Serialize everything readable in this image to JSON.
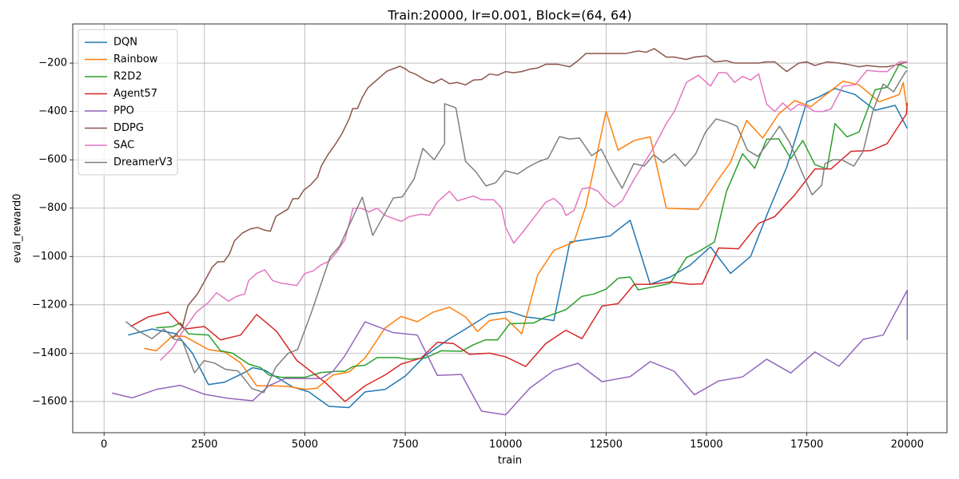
{
  "chart_data": {
    "type": "line",
    "title": "Train:20000, lr=0.001, Block=(64, 64)",
    "x_label": "train",
    "y_label": "eval_reward0",
    "xlim": [
      -780,
      20990
    ],
    "ylim": [
      -1729,
      -38
    ],
    "xticks": [
      0,
      2500,
      5000,
      7500,
      10000,
      12500,
      15000,
      17500,
      20000
    ],
    "yticks": [
      {
        "value": -1600,
        "label": "−1600"
      },
      {
        "value": -1400,
        "label": "−1400"
      },
      {
        "value": -1200,
        "label": "−1200"
      },
      {
        "value": -1000,
        "label": "−1000"
      },
      {
        "value": -800,
        "label": "−800"
      },
      {
        "value": -600,
        "label": "−600"
      },
      {
        "value": -400,
        "label": "−400"
      },
      {
        "value": -200,
        "label": "−200"
      }
    ],
    "grid": true,
    "legend": "upper left",
    "series": [
      {
        "name": "DQN",
        "color": "#1f77b4",
        "x": [
          600,
          1200,
          1800,
          2200,
          2600,
          3000,
          3500,
          3700,
          4000,
          4300,
          4700,
          5100,
          5600,
          6100,
          6500,
          7000,
          7500,
          8000,
          8600,
          9000,
          9600,
          10100,
          10500,
          11000,
          11200,
          11600,
          12000,
          12600,
          13100,
          13600,
          14100,
          14600,
          15100,
          15600,
          16100,
          16500,
          17000,
          17500,
          17800,
          18200,
          18700,
          19200,
          19700,
          20000
        ],
        "values": [
          -1325,
          -1300,
          -1320,
          -1400,
          -1530,
          -1520,
          -1480,
          -1460,
          -1470,
          -1500,
          -1540,
          -1560,
          -1620,
          -1625,
          -1560,
          -1550,
          -1495,
          -1410,
          -1340,
          -1300,
          -1238,
          -1228,
          -1250,
          -1260,
          -1265,
          -940,
          -930,
          -915,
          -850,
          -1115,
          -1085,
          -1035,
          -960,
          -1070,
          -1000,
          -830,
          -630,
          -360,
          -340,
          -305,
          -330,
          -395,
          -375,
          -470
        ]
      },
      {
        "name": "Rainbow",
        "color": "#ff7f0e",
        "x": [
          1000,
          1300,
          1700,
          2000,
          2600,
          3000,
          3400,
          3800,
          4200,
          4600,
          5000,
          5300,
          5700,
          6100,
          6500,
          7000,
          7400,
          7800,
          8200,
          8600,
          9000,
          9300,
          9600,
          10000,
          10400,
          10800,
          11200,
          11700,
          12000,
          12500,
          12800,
          13200,
          13600,
          14000,
          14800,
          15300,
          15600,
          16000,
          16400,
          16800,
          17200,
          17600,
          17900,
          18400,
          18800,
          19300,
          19800,
          19900,
          19980,
          20000
        ],
        "values": [
          -1380,
          -1390,
          -1330,
          -1330,
          -1385,
          -1395,
          -1440,
          -1535,
          -1535,
          -1538,
          -1550,
          -1545,
          -1490,
          -1478,
          -1420,
          -1295,
          -1248,
          -1270,
          -1230,
          -1210,
          -1250,
          -1310,
          -1265,
          -1255,
          -1320,
          -1075,
          -975,
          -940,
          -790,
          -400,
          -560,
          -520,
          -505,
          -800,
          -805,
          -680,
          -610,
          -437,
          -510,
          -410,
          -355,
          -380,
          -340,
          -275,
          -290,
          -360,
          -330,
          -280,
          -375,
          -395
        ]
      },
      {
        "name": "R2D2",
        "color": "#2ca02c",
        "x": [
          1300,
          1700,
          1900,
          2100,
          2600,
          2900,
          3200,
          3600,
          3900,
          4100,
          4400,
          5000,
          5400,
          5800,
          6000,
          6200,
          6500,
          6800,
          7300,
          7600,
          8000,
          8400,
          8900,
          9200,
          9500,
          9800,
          10100,
          10700,
          11000,
          11500,
          11900,
          12200,
          12500,
          12800,
          13100,
          13300,
          14000,
          14100,
          14500,
          14800,
          15200,
          15500,
          15900,
          16200,
          16500,
          16800,
          17100,
          17400,
          17700,
          18000,
          18200,
          18500,
          18800,
          19200,
          19500,
          19800,
          20000
        ],
        "values": [
          -1295,
          -1290,
          -1275,
          -1320,
          -1325,
          -1390,
          -1400,
          -1445,
          -1460,
          -1490,
          -1500,
          -1500,
          -1480,
          -1475,
          -1475,
          -1455,
          -1450,
          -1418,
          -1418,
          -1425,
          -1420,
          -1390,
          -1392,
          -1365,
          -1345,
          -1345,
          -1278,
          -1275,
          -1250,
          -1220,
          -1165,
          -1155,
          -1135,
          -1090,
          -1085,
          -1138,
          -1115,
          -1110,
          -1005,
          -980,
          -940,
          -730,
          -575,
          -635,
          -515,
          -513,
          -595,
          -520,
          -620,
          -638,
          -450,
          -505,
          -485,
          -310,
          -300,
          -205,
          -220
        ]
      },
      {
        "name": "Agent57",
        "color": "#d62728",
        "x": [
          660,
          1100,
          1600,
          2000,
          2500,
          2900,
          3400,
          3800,
          4300,
          4800,
          5500,
          6000,
          6500,
          7000,
          7400,
          7900,
          8300,
          8700,
          9100,
          9600,
          10000,
          10500,
          11000,
          11500,
          11900,
          12400,
          12800,
          13200,
          13600,
          14100,
          14600,
          14900,
          15300,
          15800,
          16300,
          16700,
          17200,
          17700,
          18100,
          18600,
          19100,
          19500,
          19980,
          20000
        ],
        "values": [
          -1290,
          -1250,
          -1230,
          -1300,
          -1290,
          -1345,
          -1325,
          -1240,
          -1310,
          -1430,
          -1520,
          -1600,
          -1535,
          -1490,
          -1445,
          -1420,
          -1355,
          -1360,
          -1405,
          -1400,
          -1415,
          -1455,
          -1360,
          -1305,
          -1340,
          -1205,
          -1195,
          -1115,
          -1115,
          -1105,
          -1115,
          -1113,
          -965,
          -968,
          -863,
          -835,
          -745,
          -638,
          -638,
          -565,
          -562,
          -533,
          -410,
          -365
        ]
      },
      {
        "name": "PPO",
        "color": "#9467bd",
        "x": [
          200,
          700,
          1300,
          1900,
          2500,
          3100,
          3700,
          4100,
          4500,
          4900,
          5400,
          5700,
          6000,
          6500,
          7200,
          7800,
          8300,
          8900,
          9400,
          10000,
          10600,
          11200,
          11800,
          12400,
          13100,
          13600,
          14200,
          14700,
          15300,
          15900,
          16500,
          17100,
          17700,
          18300,
          18900,
          19400,
          20000,
          20000
        ],
        "values": [
          -1565,
          -1585,
          -1550,
          -1533,
          -1570,
          -1587,
          -1597,
          -1535,
          -1505,
          -1505,
          -1505,
          -1475,
          -1410,
          -1270,
          -1315,
          -1325,
          -1492,
          -1488,
          -1640,
          -1655,
          -1545,
          -1472,
          -1442,
          -1518,
          -1497,
          -1435,
          -1475,
          -1572,
          -1515,
          -1498,
          -1425,
          -1482,
          -1395,
          -1454,
          -1343,
          -1325,
          -1140,
          -1345
        ]
      },
      {
        "name": "DDPG",
        "color": "#8c564b",
        "x": [
          1700,
          1950,
          2090,
          2330,
          2550,
          2690,
          2830,
          2985,
          3125,
          3245,
          3445,
          3640,
          3820,
          3980,
          4140,
          4280,
          4580,
          4700,
          4840,
          4975,
          5135,
          5315,
          5410,
          5570,
          5770,
          5930,
          6110,
          6190,
          6310,
          6430,
          6570,
          6885,
          7045,
          7365,
          7500,
          7600,
          7760,
          8000,
          8200,
          8400,
          8600,
          8800,
          9000,
          9200,
          9400,
          9600,
          9800,
          10000,
          10200,
          10400,
          10600,
          10800,
          11000,
          11300,
          11600,
          11800,
          12000,
          12200,
          12600,
          13000,
          13300,
          13500,
          13700,
          14000,
          14200,
          14500,
          14700,
          15000,
          15200,
          15500,
          15700,
          16000,
          16300,
          16500,
          16700,
          17000,
          17300,
          17500,
          17700,
          18000,
          18300,
          18500,
          18800,
          19000,
          19300,
          19500,
          19800,
          20000
        ],
        "values": [
          -1340,
          -1292,
          -1203,
          -1154,
          -1088,
          -1045,
          -1022,
          -1022,
          -989,
          -936,
          -903,
          -886,
          -880,
          -890,
          -896,
          -834,
          -804,
          -761,
          -761,
          -725,
          -705,
          -672,
          -626,
          -580,
          -533,
          -490,
          -428,
          -388,
          -388,
          -342,
          -302,
          -256,
          -233,
          -213,
          -223,
          -236,
          -246,
          -270,
          -283,
          -265,
          -285,
          -280,
          -290,
          -270,
          -268,
          -245,
          -250,
          -235,
          -240,
          -235,
          -225,
          -220,
          -205,
          -205,
          -215,
          -190,
          -160,
          -160,
          -160,
          -160,
          -150,
          -155,
          -140,
          -175,
          -175,
          -185,
          -175,
          -170,
          -195,
          -190,
          -200,
          -200,
          -200,
          -195,
          -195,
          -235,
          -200,
          -195,
          -210,
          -195,
          -200,
          -205,
          -215,
          -210,
          -215,
          -215,
          -205,
          -195
        ]
      },
      {
        "name": "SAC",
        "color": "#e377c2",
        "x": [
          1400,
          1700,
          2000,
          2300,
          2600,
          2800,
          3100,
          3300,
          3500,
          3600,
          3800,
          4000,
          4200,
          4400,
          4800,
          5000,
          5200,
          5400,
          5600,
          5800,
          6000,
          6200,
          6400,
          6600,
          6800,
          7000,
          7400,
          7600,
          7900,
          8100,
          8300,
          8600,
          8800,
          9200,
          9400,
          9700,
          9900,
          10000,
          10200,
          10400,
          10700,
          11000,
          11200,
          11400,
          11500,
          11700,
          11900,
          12100,
          12300,
          12500,
          12700,
          12900,
          13000,
          13200,
          13500,
          13700,
          14000,
          14200,
          14400,
          14500,
          14800,
          15100,
          15300,
          15500,
          15700,
          15900,
          16100,
          16300,
          16500,
          16700,
          16900,
          17100,
          17300,
          17500,
          17700,
          17900,
          18100,
          18400,
          18700,
          19000,
          19300,
          19500,
          19800,
          20000
        ],
        "values": [
          -1430,
          -1380,
          -1300,
          -1230,
          -1190,
          -1150,
          -1185,
          -1165,
          -1155,
          -1100,
          -1070,
          -1055,
          -1100,
          -1110,
          -1120,
          -1070,
          -1060,
          -1035,
          -1020,
          -980,
          -930,
          -800,
          -800,
          -815,
          -800,
          -830,
          -855,
          -835,
          -825,
          -830,
          -775,
          -730,
          -770,
          -750,
          -765,
          -765,
          -800,
          -880,
          -945,
          -905,
          -840,
          -775,
          -760,
          -790,
          -830,
          -810,
          -720,
          -715,
          -730,
          -770,
          -795,
          -770,
          -740,
          -680,
          -600,
          -545,
          -450,
          -400,
          -320,
          -280,
          -250,
          -295,
          -240,
          -240,
          -280,
          -255,
          -270,
          -245,
          -370,
          -400,
          -365,
          -395,
          -370,
          -380,
          -400,
          -400,
          -390,
          -295,
          -290,
          -230,
          -235,
          -235,
          -195,
          -195
        ]
      },
      {
        "name": "DreamerV3",
        "color": "#7f7f7f",
        "x": [
          540,
          835,
          1195,
          1490,
          1750,
          1950,
          2250,
          2490,
          2750,
          3025,
          3340,
          3680,
          3980,
          4280,
          4580,
          4820,
          5175,
          5375,
          5630,
          5870,
          6170,
          6430,
          6690,
          6965,
          7205,
          7425,
          7720,
          7940,
          8220,
          8480,
          8481,
          8760,
          9000,
          9255,
          9510,
          9750,
          9990,
          10300,
          10540,
          10800,
          11060,
          11340,
          11580,
          11840,
          12140,
          12380,
          12640,
          12900,
          13190,
          13450,
          13690,
          13930,
          14210,
          14470,
          14730,
          14980,
          15240,
          15520,
          15760,
          16020,
          16280,
          16520,
          16820,
          17070,
          17370,
          17630,
          17870,
          17950,
          18150,
          18370,
          18670,
          18900,
          19140,
          19400,
          19660,
          19860,
          19960,
          20000
        ],
        "values": [
          -1269,
          -1306,
          -1340,
          -1300,
          -1342,
          -1349,
          -1481,
          -1431,
          -1441,
          -1467,
          -1474,
          -1546,
          -1563,
          -1457,
          -1401,
          -1385,
          -1226,
          -1127,
          -1002,
          -956,
          -847,
          -755,
          -913,
          -830,
          -758,
          -754,
          -679,
          -553,
          -600,
          -533,
          -368,
          -385,
          -606,
          -649,
          -708,
          -695,
          -645,
          -659,
          -632,
          -609,
          -593,
          -504,
          -514,
          -510,
          -583,
          -556,
          -642,
          -718,
          -616,
          -626,
          -579,
          -612,
          -576,
          -626,
          -576,
          -484,
          -431,
          -444,
          -461,
          -560,
          -586,
          -533,
          -461,
          -527,
          -649,
          -745,
          -705,
          -616,
          -600,
          -600,
          -626,
          -566,
          -401,
          -286,
          -319,
          -263,
          -236,
          -230
        ]
      }
    ]
  }
}
